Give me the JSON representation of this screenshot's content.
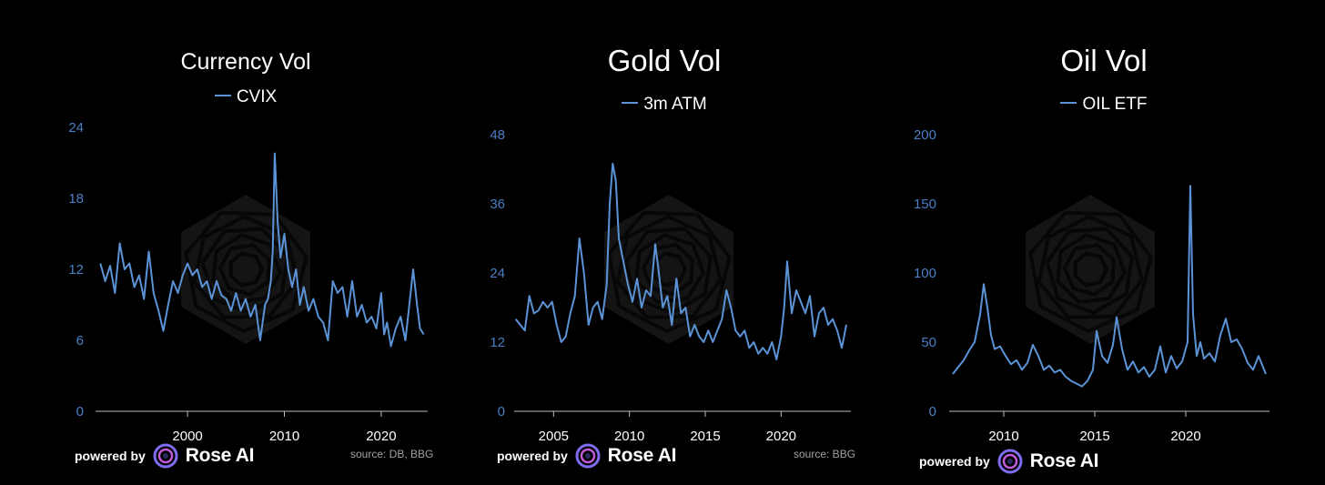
{
  "colors": {
    "background": "#000000",
    "line": "#5b93d6",
    "axis_tick": "#4b7fc5",
    "source": "#a0a0a0"
  },
  "panels": [
    {
      "title": "Currency Vol",
      "legend": "CVIX",
      "powered_by": "powered by",
      "brand": "Rose AI",
      "source": "source: DB, BBG"
    },
    {
      "title": "Gold Vol",
      "legend": "3m ATM",
      "powered_by": "powered by",
      "brand": "Rose AI",
      "source": "source: BBG"
    },
    {
      "title": "Oil Vol",
      "legend": "OIL ETF",
      "powered_by": "powered by",
      "brand": "Rose AI",
      "source": ""
    }
  ],
  "chart_data": [
    {
      "type": "line",
      "title": "Currency Vol",
      "series": [
        {
          "name": "CVIX",
          "x": [
            1991.0,
            1991.5,
            1992.0,
            1992.5,
            1993.0,
            1993.5,
            1994.0,
            1994.5,
            1995.0,
            1995.5,
            1996.0,
            1996.5,
            1997.0,
            1997.5,
            1998.0,
            1998.5,
            1999.0,
            1999.5,
            2000.0,
            2000.5,
            2001.0,
            2001.5,
            2002.0,
            2002.5,
            2003.0,
            2003.5,
            2004.0,
            2004.5,
            2005.0,
            2005.5,
            2006.0,
            2006.5,
            2007.0,
            2007.5,
            2008.0,
            2008.3,
            2008.6,
            2008.8,
            2009.0,
            2009.3,
            2009.6,
            2010.0,
            2010.4,
            2010.8,
            2011.2,
            2011.6,
            2012.0,
            2012.5,
            2013.0,
            2013.5,
            2014.0,
            2014.5,
            2015.0,
            2015.5,
            2016.0,
            2016.5,
            2017.0,
            2017.5,
            2018.0,
            2018.5,
            2019.0,
            2019.5,
            2020.0,
            2020.3,
            2020.6,
            2021.0,
            2021.5,
            2022.0,
            2022.5,
            2022.9,
            2023.3,
            2023.7,
            2024.0,
            2024.4
          ],
          "values": [
            12.5,
            11,
            12.3,
            10,
            14.2,
            12,
            12.5,
            10.5,
            11.5,
            9.5,
            13.5,
            10,
            8.5,
            6.8,
            9,
            11,
            10,
            11.5,
            12.5,
            11.5,
            12,
            10.5,
            11,
            9.5,
            11,
            9.8,
            9.5,
            8.5,
            10,
            8.5,
            9.5,
            8,
            9,
            6,
            9,
            9.5,
            11,
            13.5,
            21.8,
            16,
            13,
            15,
            12,
            10.5,
            12,
            9,
            10.5,
            8.5,
            9.5,
            8,
            7.5,
            6,
            11,
            10,
            10.5,
            8,
            11,
            8,
            9,
            7.5,
            8,
            7,
            10,
            6.5,
            7.5,
            5.5,
            7,
            8,
            6,
            9,
            12,
            9,
            7,
            6.5
          ]
        }
      ],
      "xticks": [
        "2000",
        "2010",
        "2020"
      ],
      "xtick_values": [
        2000,
        2010,
        2020
      ],
      "yticks": [
        "0",
        "6",
        "12",
        "18",
        "24"
      ],
      "ylim": [
        0,
        24
      ],
      "xlim": [
        1990.5,
        2024.8
      ]
    },
    {
      "type": "line",
      "title": "Gold Vol",
      "series": [
        {
          "name": "3m ATM",
          "x": [
            2002.5,
            2002.8,
            2003.1,
            2003.4,
            2003.7,
            2004.0,
            2004.3,
            2004.6,
            2004.9,
            2005.2,
            2005.5,
            2005.8,
            2006.1,
            2006.4,
            2006.7,
            2007.0,
            2007.3,
            2007.6,
            2007.9,
            2008.2,
            2008.5,
            2008.7,
            2008.9,
            2009.1,
            2009.3,
            2009.6,
            2009.9,
            2010.2,
            2010.5,
            2010.8,
            2011.1,
            2011.4,
            2011.7,
            2011.9,
            2012.2,
            2012.5,
            2012.8,
            2013.1,
            2013.4,
            2013.7,
            2014.0,
            2014.3,
            2014.6,
            2014.9,
            2015.2,
            2015.5,
            2015.8,
            2016.1,
            2016.4,
            2016.7,
            2017.0,
            2017.3,
            2017.6,
            2017.9,
            2018.2,
            2018.5,
            2018.8,
            2019.1,
            2019.4,
            2019.7,
            2020.0,
            2020.2,
            2020.4,
            2020.7,
            2021.0,
            2021.3,
            2021.6,
            2021.9,
            2022.2,
            2022.5,
            2022.8,
            2023.1,
            2023.4,
            2023.7,
            2024.0,
            2024.3
          ],
          "values": [
            16,
            15,
            14,
            20,
            17,
            17.5,
            19,
            18,
            19,
            15,
            12,
            13,
            17,
            20,
            30,
            24,
            15,
            18,
            19,
            16,
            22,
            36,
            43,
            40,
            30,
            26,
            22,
            19,
            23,
            18,
            21,
            20,
            29,
            25,
            18,
            20,
            15,
            23,
            17,
            18,
            13,
            15,
            13,
            12,
            14,
            12,
            14,
            16,
            21,
            18,
            14,
            13,
            14,
            11,
            12,
            10,
            11,
            10,
            12,
            9,
            13,
            18,
            26,
            17,
            21,
            19,
            17,
            20,
            13,
            17,
            18,
            15,
            16,
            14,
            11,
            15
          ]
        }
      ],
      "xticks": [
        "2005",
        "2010",
        "2015",
        "2020"
      ],
      "xtick_values": [
        2005,
        2010,
        2015,
        2020
      ],
      "yticks": [
        "0",
        "12",
        "24",
        "36",
        "48"
      ],
      "ylim": [
        0,
        48
      ],
      "xlim": [
        2002.4,
        2024.6
      ]
    },
    {
      "type": "line",
      "title": "Oil Vol",
      "series": [
        {
          "name": "OIL ETF",
          "x": [
            2007.2,
            2007.5,
            2007.8,
            2008.1,
            2008.4,
            2008.7,
            2008.9,
            2009.1,
            2009.3,
            2009.5,
            2009.8,
            2010.1,
            2010.4,
            2010.7,
            2011.0,
            2011.3,
            2011.6,
            2011.9,
            2012.2,
            2012.5,
            2012.8,
            2013.1,
            2013.4,
            2013.7,
            2014.0,
            2014.3,
            2014.6,
            2014.9,
            2015.1,
            2015.4,
            2015.7,
            2016.0,
            2016.2,
            2016.5,
            2016.8,
            2017.1,
            2017.4,
            2017.7,
            2018.0,
            2018.3,
            2018.6,
            2018.9,
            2019.2,
            2019.5,
            2019.8,
            2020.1,
            2020.25,
            2020.4,
            2020.6,
            2020.8,
            2021.0,
            2021.3,
            2021.6,
            2021.9,
            2022.2,
            2022.5,
            2022.8,
            2023.1,
            2023.4,
            2023.7,
            2024.0,
            2024.4
          ],
          "values": [
            27,
            32,
            37,
            44,
            50,
            70,
            92,
            75,
            55,
            45,
            47,
            40,
            34,
            37,
            30,
            35,
            48,
            40,
            30,
            33,
            28,
            30,
            25,
            22,
            20,
            18,
            22,
            30,
            58,
            40,
            35,
            48,
            68,
            45,
            30,
            36,
            28,
            32,
            25,
            30,
            47,
            28,
            40,
            31,
            36,
            50,
            163,
            70,
            40,
            50,
            38,
            42,
            36,
            55,
            67,
            50,
            52,
            45,
            35,
            30,
            40,
            27
          ]
        }
      ],
      "xticks": [
        "2010",
        "2015",
        "2020"
      ],
      "xtick_values": [
        2010,
        2015,
        2020
      ],
      "yticks": [
        "0",
        "50",
        "100",
        "150",
        "200"
      ],
      "ylim": [
        0,
        200
      ],
      "xlim": [
        2007.0,
        2024.6
      ]
    }
  ]
}
